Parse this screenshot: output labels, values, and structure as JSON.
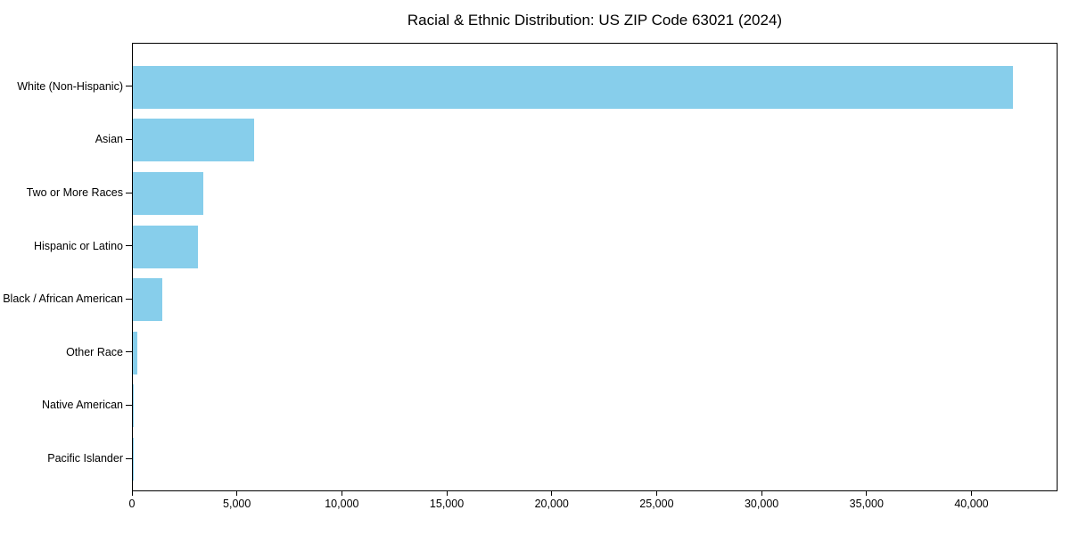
{
  "figure": {
    "background": "#ffffff",
    "text_color": "#000000",
    "axis_color": "#000000"
  },
  "chart_data": {
    "type": "bar",
    "orientation": "horizontal",
    "title": "Racial & Ethnic Distribution: US ZIP Code 63021 (2024)",
    "categories": [
      "White (Non-Hispanic)",
      "Asian",
      "Two or More Races",
      "Hispanic or Latino",
      "Black / African American",
      "Other Race",
      "Native American",
      "Pacific Islander"
    ],
    "values": [
      42000,
      5800,
      3350,
      3100,
      1400,
      200,
      30,
      15
    ],
    "xlabel": "",
    "ylabel": "",
    "xlim": [
      0,
      44100
    ],
    "xticks": [
      0,
      5000,
      10000,
      15000,
      20000,
      25000,
      30000,
      35000,
      40000
    ],
    "xtick_labels": [
      "0",
      "5,000",
      "10,000",
      "15,000",
      "20,000",
      "25,000",
      "30,000",
      "35,000",
      "40,000"
    ],
    "bar_color": "#87CEEB",
    "grid": false,
    "legend": null
  }
}
